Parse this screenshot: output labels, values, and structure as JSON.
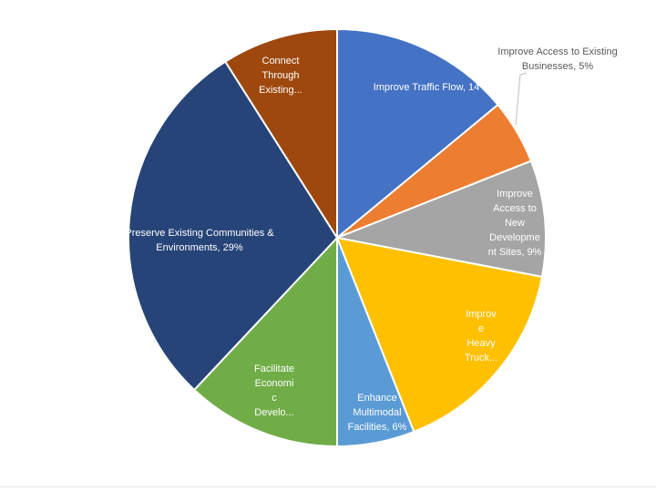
{
  "chart_data": {
    "type": "pie",
    "title": "",
    "slices": [
      {
        "label_lines": [
          "Improve Traffic Flow, 14"
        ],
        "value": 14,
        "color": "#4472C4",
        "label_color": "#ffffff"
      },
      {
        "label_lines": [
          "Improve Access to Existing",
          "Businesses, 5%"
        ],
        "value": 5,
        "color": "#ED7D31",
        "label_color": "#595959"
      },
      {
        "label_lines": [
          "Improve",
          "Access to",
          "New",
          "Developme",
          "nt Sites, 9%"
        ],
        "value": 9,
        "color": "#A5A5A5",
        "label_color": "#ffffff"
      },
      {
        "label_lines": [
          "Improv",
          "e",
          "Heavy",
          "Truck..."
        ],
        "value": 16,
        "color": "#FFC000",
        "label_color": "#ffffff"
      },
      {
        "label_lines": [
          "Enhance",
          "Multimodal",
          "Facilities, 6%"
        ],
        "value": 6,
        "color": "#5B9BD5",
        "label_color": "#ffffff"
      },
      {
        "label_lines": [
          "Facilitate",
          "Economi",
          "c",
          "Develo..."
        ],
        "value": 12,
        "color": "#70AD47",
        "label_color": "#ffffff"
      },
      {
        "label_lines": [
          "Preserve Existing Communities &",
          "Environments, 29%"
        ],
        "value": 29,
        "color": "#264478",
        "label_color": "#ffffff"
      },
      {
        "label_lines": [
          "Connect",
          "Through",
          "Existing..."
        ],
        "value": 9,
        "color": "#9E480E",
        "label_color": "#ffffff"
      }
    ],
    "start_angle_deg": 0,
    "direction": "clockwise",
    "legend": "none"
  }
}
